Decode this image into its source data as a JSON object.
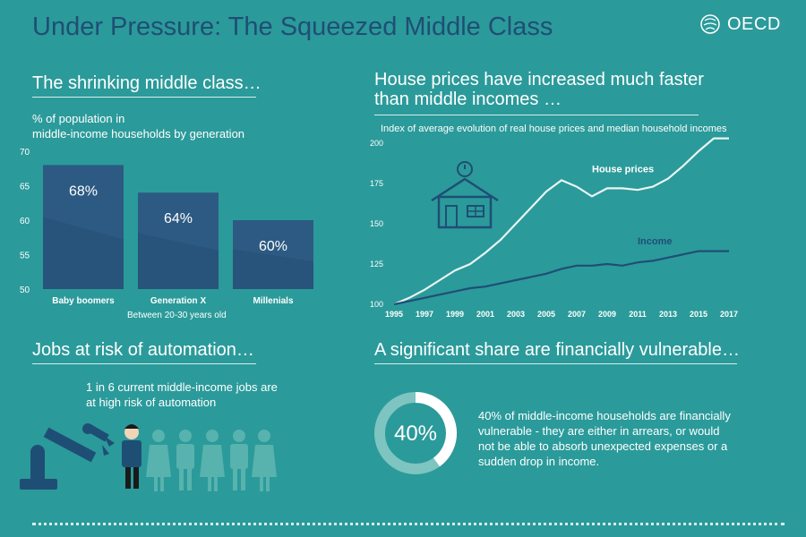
{
  "header": {
    "title": "Under Pressure: The Squeezed Middle Class",
    "logo_text": "OECD"
  },
  "colors": {
    "background": "#2b9a9a",
    "title": "#1f4e75",
    "bar": "#2d5a82",
    "house_line": "#e8f5f3",
    "income_line": "#1f4e75"
  },
  "sections": {
    "middle_class": {
      "title": "The shrinking middle class…",
      "subtitle_line1": "% of population in",
      "subtitle_line2": "middle-income households by generation",
      "footnote": "Between 20-30 years old"
    },
    "house_prices": {
      "title_line1": "House prices have increased much faster",
      "title_line2": "than middle incomes …",
      "subtitle": "Index of average evolution of real house prices and median household incomes"
    },
    "automation": {
      "title": "Jobs at risk of automation…",
      "text_line1": "1 in 6 current middle-income jobs are",
      "text_line2": "at high risk of automation"
    },
    "vulnerable": {
      "title": "A significant share are financially vulnerable…",
      "percent_label": "40%",
      "percent_value": 40,
      "text_line1": "40% of middle-income households are financially",
      "text_line2": "vulnerable - they are either in arrears, or would",
      "text_line3": "not be able to absorb unexpected expenses or a",
      "text_line4": "sudden drop in income."
    }
  },
  "chart_data": [
    {
      "type": "bar",
      "categories": [
        "Baby boomers",
        "Generation X",
        "Millenials"
      ],
      "values": [
        68,
        64,
        60
      ],
      "value_labels": [
        "68%",
        "64%",
        "60%"
      ],
      "ylim": [
        50,
        70
      ],
      "yticks": [
        50,
        55,
        60,
        65,
        70
      ],
      "grid": false
    },
    {
      "type": "line",
      "x": [
        1995,
        1996,
        1997,
        1998,
        1999,
        2000,
        2001,
        2002,
        2003,
        2004,
        2005,
        2006,
        2007,
        2008,
        2009,
        2010,
        2011,
        2012,
        2013,
        2014,
        2015,
        2016,
        2017
      ],
      "xticks": [
        1995,
        1997,
        1999,
        2001,
        2003,
        2005,
        2007,
        2009,
        2011,
        2013,
        2015,
        2017
      ],
      "ylim": [
        100,
        200
      ],
      "yticks": [
        100,
        125,
        150,
        175,
        200
      ],
      "series": [
        {
          "name": "House prices",
          "values": [
            100,
            104,
            109,
            115,
            121,
            125,
            132,
            140,
            150,
            160,
            170,
            177,
            173,
            167,
            172,
            172,
            171,
            173,
            178,
            186,
            195,
            203,
            203
          ]
        },
        {
          "name": "Income",
          "values": [
            100,
            102,
            104,
            106,
            108,
            110,
            111,
            113,
            115,
            117,
            119,
            122,
            124,
            124,
            125,
            124,
            126,
            127,
            129,
            131,
            133,
            133,
            133
          ]
        }
      ],
      "grid": false
    }
  ]
}
